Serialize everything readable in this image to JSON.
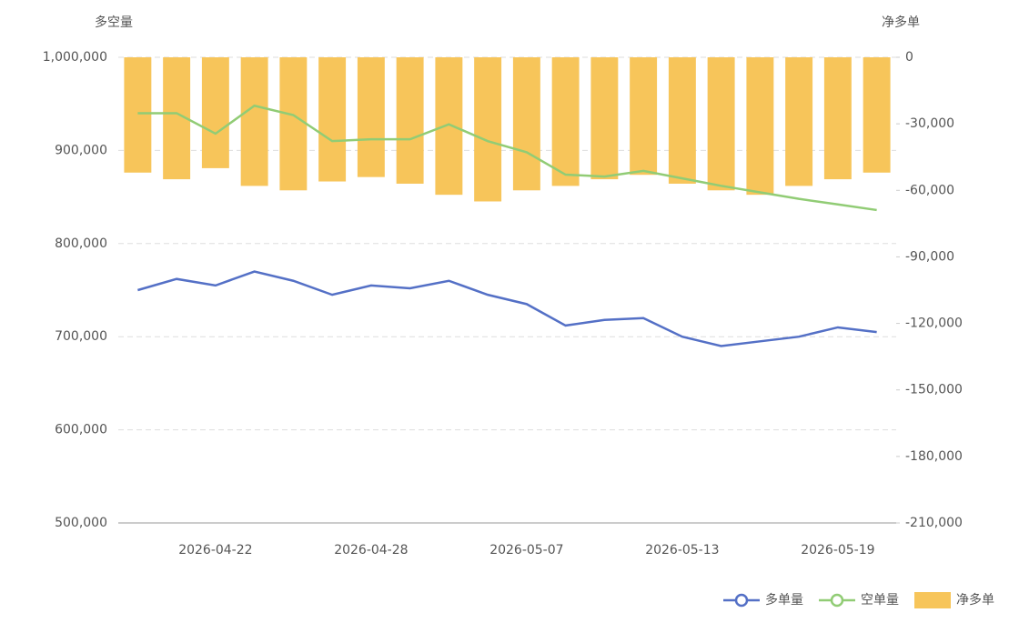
{
  "chart_data": {
    "type": "bar-line",
    "y_label": "多空量",
    "y2_label": "净多单",
    "categories": [
      null,
      null,
      "2026-04-22",
      null,
      null,
      null,
      "2026-04-28",
      null,
      null,
      null,
      "2026-05-07",
      null,
      null,
      null,
      "2026-05-13",
      null,
      null,
      null,
      "2026-05-19",
      null
    ],
    "series": [
      {
        "name": "多单量",
        "type": "line",
        "color": "#5470c6",
        "values": [
          750000,
          762000,
          755000,
          770000,
          760000,
          745000,
          755000,
          752000,
          760000,
          745000,
          735000,
          712000,
          718000,
          720000,
          700000,
          690000,
          695000,
          700000,
          710000,
          705000
        ]
      },
      {
        "name": "空单量",
        "type": "line",
        "color": "#91cc75",
        "values": [
          940000,
          940000,
          918000,
          948000,
          938000,
          910000,
          912000,
          912000,
          928000,
          910000,
          898000,
          874000,
          872000,
          878000,
          870000,
          862000,
          855000,
          848000,
          842000,
          836000
        ]
      },
      {
        "name": "净多单",
        "type": "bar",
        "axis": "y2",
        "color": "#f7c55a",
        "values": [
          -52000,
          -55000,
          -50000,
          -58000,
          -60000,
          -56000,
          -54000,
          -57000,
          -62000,
          -65000,
          -60000,
          -58000,
          -55000,
          -53000,
          -57000,
          -60000,
          -62000,
          -58000,
          -55000,
          -52000
        ]
      }
    ],
    "ylim": [
      500000,
      1000000
    ],
    "yticks": [
      {
        "value": 500000,
        "label": "500,000"
      },
      {
        "value": 600000,
        "label": "600,000"
      },
      {
        "value": 700000,
        "label": "700,000"
      },
      {
        "value": 800000,
        "label": "800,000"
      },
      {
        "value": 900000,
        "label": "900,000"
      },
      {
        "value": 1000000,
        "label": "1,000,000"
      }
    ],
    "y2lim": [
      -210000,
      0
    ],
    "y2ticks": [
      {
        "value": -210000,
        "label": "-210,000"
      },
      {
        "value": -180000,
        "label": "-180,000"
      },
      {
        "value": -150000,
        "label": "-150,000"
      },
      {
        "value": -120000,
        "label": "-120,000"
      },
      {
        "value": -90000,
        "label": "-90,000"
      },
      {
        "value": -60000,
        "label": "-60,000"
      },
      {
        "value": -30000,
        "label": "-30,000"
      },
      0
    ],
    "grid": true
  }
}
